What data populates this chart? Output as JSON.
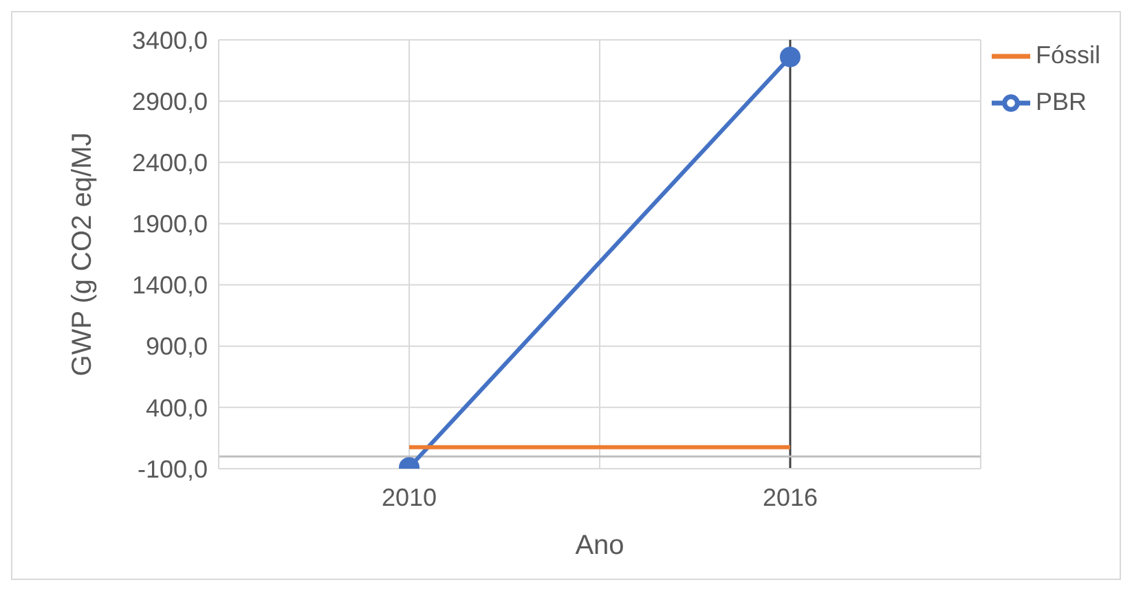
{
  "chart_data": {
    "type": "line",
    "xlabel": "Ano",
    "ylabel": "GWP (g CO2 eq/MJ",
    "x": [
      2010,
      2016
    ],
    "series": [
      {
        "name": "PBR",
        "color": "#4472c4",
        "values": [
          -90,
          3260
        ],
        "marker": "circle"
      },
      {
        "name": "Fóssil",
        "color": "#ed7d31",
        "values": [
          75,
          75
        ],
        "marker": "none"
      }
    ],
    "xlim": [
      2007,
      2019
    ],
    "xticks": [
      {
        "value": 2007,
        "label": null
      },
      2010,
      {
        "value": 2013,
        "label": null
      },
      2016,
      {
        "value": 2019,
        "label": null
      }
    ],
    "ylim": [
      -100,
      3400
    ],
    "yticks": [
      {
        "value": -100,
        "label": "-100,0"
      },
      {
        "value": 400,
        "label": "400,0"
      },
      {
        "value": 900,
        "label": "900,0"
      },
      {
        "value": 1400,
        "label": "1400,0"
      },
      {
        "value": 1900,
        "label": "1900,0"
      },
      {
        "value": 2400,
        "label": "2400,0"
      },
      {
        "value": 2900,
        "label": "2900,0"
      },
      {
        "value": 3400,
        "label": "3400,0"
      }
    ],
    "ref_lines": [
      {
        "axis": "x",
        "value": 2016,
        "label": null,
        "color": "#404040"
      },
      {
        "axis": "y",
        "value": 0,
        "label": null,
        "color": "#bfbfbf"
      }
    ],
    "grid": true,
    "legend": "top right"
  }
}
